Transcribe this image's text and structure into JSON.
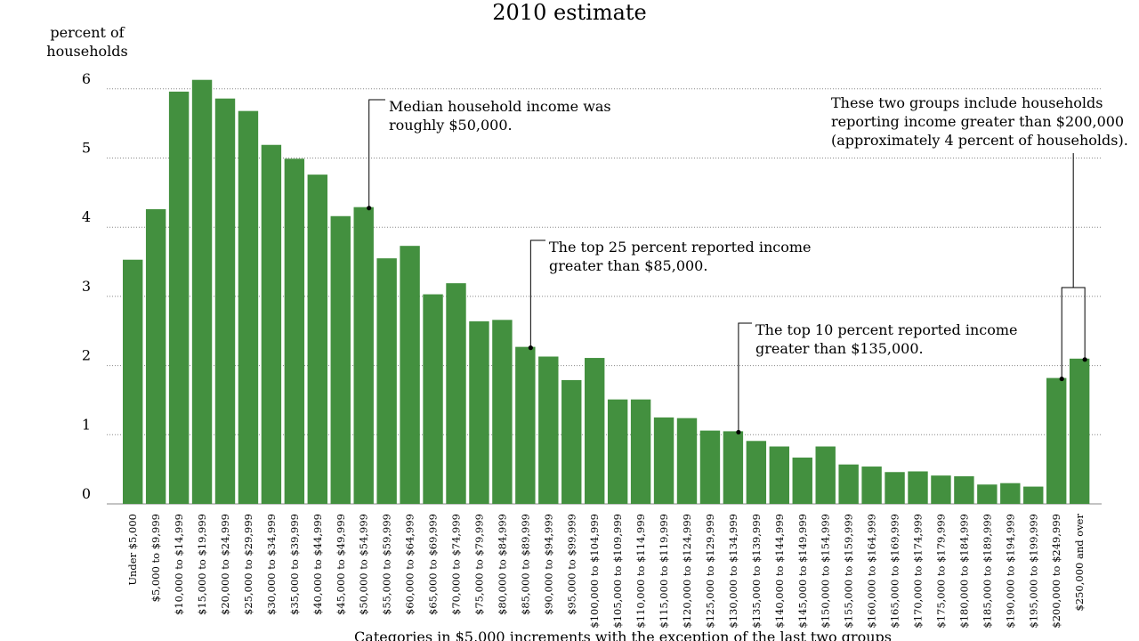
{
  "chart_data": {
    "type": "bar",
    "title": "2010 estimate",
    "ylabel": [
      "percent of",
      "households"
    ],
    "xlabel": "Categories in $5,000 increments with the exception of the last two groups",
    "ylim": [
      0,
      6
    ],
    "yticks": [
      0,
      1,
      2,
      3,
      4,
      5,
      6
    ],
    "grid": "horizontal dotted",
    "bar_color": "#43903f",
    "categories": [
      "Under $5,000",
      "$5,000 to $9,999",
      "$10,000 to $14,999",
      "$15,000 to $19,999",
      "$20,000 to $24,999",
      "$25,000 to $29,999",
      "$30,000 to $34,999",
      "$35,000 to $39,999",
      "$40,000 to $44,999",
      "$45,000 to $49,999",
      "$50,000 to $54,999",
      "$55,000 to $59,999",
      "$60,000 to $64,999",
      "$65,000 to $69,999",
      "$70,000 to $74,999",
      "$75,000 to $79,999",
      "$80,000 to $84,999",
      "$85,000 to $89,999",
      "$90,000 to $94,999",
      "$95,000 to $99,999",
      "$100,000 to $104,999",
      "$105,000 to $109,999",
      "$110,000 to $114,999",
      "$115,000 to $119,999",
      "$120,000 to $124,999",
      "$125,000 to $129,999",
      "$130,000 to $134,999",
      "$135,000 to $139,999",
      "$140,000 to $144,999",
      "$145,000 to $149,999",
      "$150,000 to $154,999",
      "$155,000 to $159,999",
      "$160,000 to $164,999",
      "$165,000 to $169,999",
      "$170,000 to $174,999",
      "$175,000 to $179,999",
      "$180,000 to $184,999",
      "$185,000 to $189,999",
      "$190,000 to $194,999",
      "$195,000 to $199,999",
      "$200,000 to $249,999",
      "$250,000 and over"
    ],
    "values": [
      3.53,
      4.26,
      5.96,
      6.13,
      5.86,
      5.68,
      5.19,
      4.99,
      4.76,
      4.16,
      4.29,
      3.55,
      3.73,
      3.03,
      3.19,
      2.64,
      2.66,
      2.27,
      2.13,
      1.79,
      2.11,
      1.51,
      1.51,
      1.25,
      1.24,
      1.06,
      1.05,
      0.91,
      0.83,
      0.67,
      0.83,
      0.57,
      0.54,
      0.46,
      0.47,
      0.41,
      0.4,
      0.28,
      0.3,
      0.25,
      1.82,
      2.1
    ],
    "annotations": [
      {
        "lines": [
          "Median household income was",
          "roughly $50,000."
        ],
        "category_index": 10
      },
      {
        "lines": [
          "The top 25 percent reported income",
          "greater than $85,000."
        ],
        "category_index": 17
      },
      {
        "lines": [
          "The top 10 percent reported income",
          "greater than $135,000."
        ],
        "category_index": 26
      },
      {
        "lines": [
          "These two groups include households",
          "reporting income greater than $200,000",
          "(approximately 4 percent of households)."
        ],
        "category_indices": [
          40,
          41
        ]
      }
    ]
  }
}
